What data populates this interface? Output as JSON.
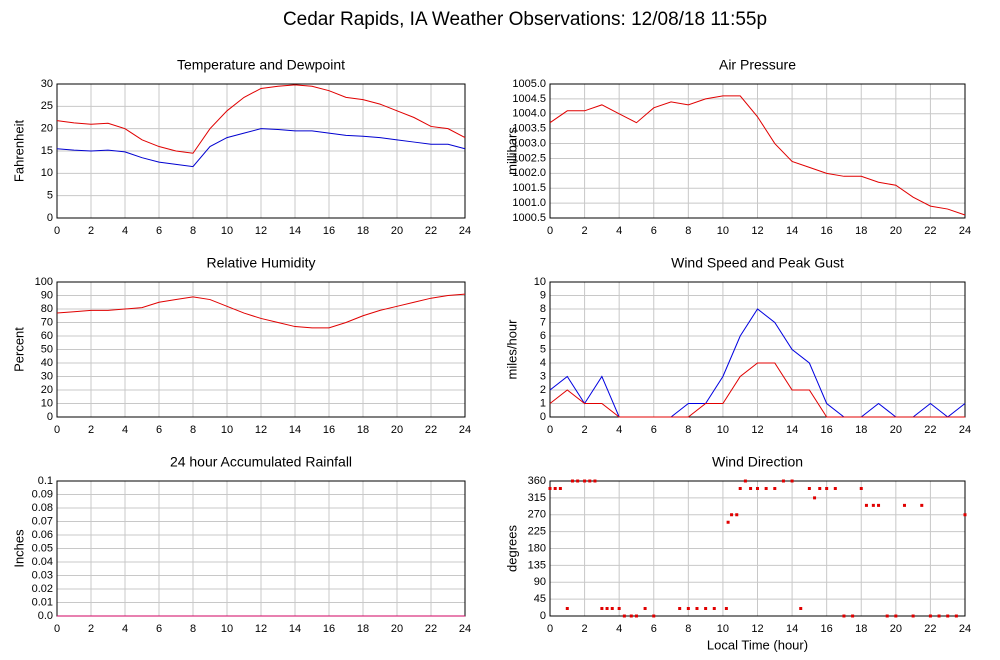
{
  "title": "Cedar Rapids, IA Weather Observations: 12/08/18 11:55p",
  "chart_data": [
    {
      "type": "line",
      "title": "Temperature and Dewpoint",
      "ylabel": "Fahrenheit",
      "x": [
        0,
        1,
        2,
        3,
        4,
        5,
        6,
        7,
        8,
        9,
        10,
        11,
        12,
        13,
        14,
        15,
        16,
        17,
        18,
        19,
        20,
        21,
        22,
        23,
        24
      ],
      "series": [
        {
          "color": "#e00000",
          "values": [
            21.8,
            21.3,
            21,
            21.2,
            20,
            17.5,
            16,
            15,
            14.5,
            20,
            24,
            27,
            29,
            29.5,
            29.8,
            29.5,
            28.5,
            27,
            26.5,
            25.5,
            24,
            22.5,
            20.5,
            20,
            18
          ]
        },
        {
          "color": "#0000d0",
          "values": [
            15.5,
            15.2,
            15,
            15.2,
            14.8,
            13.5,
            12.5,
            12,
            11.5,
            16,
            18,
            19,
            20,
            19.8,
            19.5,
            19.5,
            19,
            18.5,
            18.3,
            18,
            17.5,
            17,
            16.5,
            16.5,
            15.5
          ]
        }
      ],
      "xlim": [
        0,
        24
      ],
      "xticks": [
        0,
        2,
        4,
        6,
        8,
        10,
        12,
        14,
        16,
        18,
        20,
        22,
        24
      ],
      "ylim": [
        0,
        30
      ],
      "yticks": [
        0,
        5,
        10,
        15,
        20,
        25,
        30
      ],
      "grid": true
    },
    {
      "type": "line",
      "title": "Air Pressure",
      "ylabel": "millibars",
      "x": [
        0,
        1,
        2,
        3,
        4,
        5,
        6,
        7,
        8,
        9,
        10,
        11,
        12,
        13,
        14,
        15,
        16,
        17,
        18,
        19,
        20,
        21,
        22,
        23,
        24
      ],
      "series": [
        {
          "color": "#e00000",
          "values": [
            1003.7,
            1004.1,
            1004.1,
            1004.3,
            1004.0,
            1003.7,
            1004.2,
            1004.4,
            1004.3,
            1004.5,
            1004.6,
            1004.6,
            1003.9,
            1003.0,
            1002.4,
            1002.2,
            1002.0,
            1001.9,
            1001.9,
            1001.7,
            1001.6,
            1001.2,
            1000.9,
            1000.8,
            1000.6
          ]
        }
      ],
      "xlim": [
        0,
        24
      ],
      "xticks": [
        0,
        2,
        4,
        6,
        8,
        10,
        12,
        14,
        16,
        18,
        20,
        22,
        24
      ],
      "ylim": [
        1000.5,
        1005
      ],
      "yticks": [
        1000.5,
        {
          "value": 1001,
          "label": "1001.0"
        },
        1001.5,
        {
          "value": 1002,
          "label": "1002.0"
        },
        1002.5,
        {
          "value": 1003,
          "label": "1003.0"
        },
        1003.5,
        {
          "value": 1004,
          "label": "1004.0"
        },
        1004.5,
        {
          "value": 1005,
          "label": "1005.0"
        }
      ],
      "grid": true
    },
    {
      "type": "line",
      "title": "Relative Humidity",
      "ylabel": "Percent",
      "x": [
        0,
        1,
        2,
        3,
        4,
        5,
        6,
        7,
        8,
        9,
        10,
        11,
        12,
        13,
        14,
        15,
        16,
        17,
        18,
        19,
        20,
        21,
        22,
        23,
        24
      ],
      "series": [
        {
          "color": "#e00000",
          "values": [
            77,
            78,
            79,
            79,
            80,
            81,
            85,
            87,
            89,
            87,
            82,
            77,
            73,
            70,
            67,
            66,
            66,
            70,
            75,
            79,
            82,
            85,
            88,
            90,
            91
          ]
        }
      ],
      "xlim": [
        0,
        24
      ],
      "xticks": [
        0,
        2,
        4,
        6,
        8,
        10,
        12,
        14,
        16,
        18,
        20,
        22,
        24
      ],
      "ylim": [
        0,
        100
      ],
      "yticks": [
        0,
        10,
        20,
        30,
        40,
        50,
        60,
        70,
        80,
        90,
        100
      ],
      "grid": true
    },
    {
      "type": "line",
      "title": "Wind Speed and Peak Gust",
      "ylabel": "miles/hour",
      "x": [
        0,
        1,
        2,
        3,
        4,
        5,
        6,
        7,
        8,
        9,
        10,
        11,
        12,
        13,
        14,
        15,
        16,
        17,
        18,
        19,
        20,
        21,
        22,
        23,
        24
      ],
      "series": [
        {
          "color": "#0000e0",
          "values": [
            2,
            3,
            1,
            3,
            0,
            0,
            0,
            0,
            1,
            1,
            3,
            6,
            8,
            7,
            5,
            4,
            1,
            0,
            0,
            1,
            0,
            0,
            1,
            0,
            1
          ]
        },
        {
          "color": "#e00000",
          "values": [
            1,
            2,
            1,
            1,
            0,
            0,
            0,
            0,
            0,
            1,
            1,
            3,
            4,
            4,
            2,
            2,
            0,
            0,
            0,
            0,
            0,
            0,
            0,
            0,
            0
          ]
        }
      ],
      "xlim": [
        0,
        24
      ],
      "xticks": [
        0,
        2,
        4,
        6,
        8,
        10,
        12,
        14,
        16,
        18,
        20,
        22,
        24
      ],
      "ylim": [
        0,
        10
      ],
      "yticks": [
        0,
        1,
        2,
        3,
        4,
        5,
        6,
        7,
        8,
        9,
        10
      ],
      "grid": true
    },
    {
      "type": "line",
      "title": "24 hour Accumulated Rainfall",
      "ylabel": "Inches",
      "x": [
        0,
        1,
        2,
        3,
        4,
        5,
        6,
        7,
        8,
        9,
        10,
        11,
        12,
        13,
        14,
        15,
        16,
        17,
        18,
        19,
        20,
        21,
        22,
        23,
        24
      ],
      "series": [
        {
          "color": "#d00060",
          "values": [
            0,
            0,
            0,
            0,
            0,
            0,
            0,
            0,
            0,
            0,
            0,
            0,
            0,
            0,
            0,
            0,
            0,
            0,
            0,
            0,
            0,
            0,
            0,
            0,
            0
          ]
        }
      ],
      "xlim": [
        0,
        24
      ],
      "xticks": [
        0,
        2,
        4,
        6,
        8,
        10,
        12,
        14,
        16,
        18,
        20,
        22,
        24
      ],
      "ylim": [
        0,
        0.1
      ],
      "yticks": [
        {
          "value": 0,
          "label": "0.0"
        },
        0.01,
        0.02,
        0.03,
        0.04,
        0.05,
        0.06,
        0.07,
        0.08,
        0.09,
        0.1
      ],
      "grid": true
    },
    {
      "type": "scatter",
      "title": "Wind Direction",
      "ylabel": "degrees",
      "xlabel": "Local Time (hour)",
      "x": [
        0,
        0.3,
        0.6,
        1,
        1.3,
        1.6,
        2,
        2.3,
        2.6,
        3,
        3.3,
        3.6,
        4,
        4.3,
        4.7,
        5,
        5.5,
        6,
        7.5,
        8,
        8.5,
        9,
        9.5,
        10.2,
        10.3,
        10.5,
        10.8,
        11,
        11.3,
        11.6,
        12,
        12.5,
        13,
        13.5,
        14,
        14.5,
        15,
        15.3,
        15.6,
        16,
        16.5,
        17,
        17.5,
        18,
        18.3,
        18.7,
        19,
        19.5,
        20,
        20.5,
        21,
        21.5,
        22,
        22.5,
        23,
        23.5,
        24
      ],
      "series": [
        {
          "color": "#e00000",
          "values": [
            340,
            340,
            340,
            20,
            360,
            360,
            360,
            360,
            360,
            20,
            20,
            20,
            20,
            0,
            0,
            0,
            20,
            0,
            20,
            20,
            20,
            20,
            20,
            20,
            250,
            270,
            270,
            340,
            360,
            340,
            340,
            340,
            340,
            360,
            360,
            20,
            340,
            315,
            340,
            340,
            340,
            0,
            0,
            340,
            295,
            295,
            295,
            0,
            0,
            295,
            0,
            295,
            0,
            0,
            0,
            0,
            270
          ]
        }
      ],
      "xlim": [
        0,
        24
      ],
      "xticks": [
        0,
        2,
        4,
        6,
        8,
        10,
        12,
        14,
        16,
        18,
        20,
        22,
        24
      ],
      "ylim": [
        0,
        360
      ],
      "yticks": [
        0,
        45,
        90,
        135,
        180,
        225,
        270,
        315,
        360
      ],
      "grid": true
    }
  ]
}
